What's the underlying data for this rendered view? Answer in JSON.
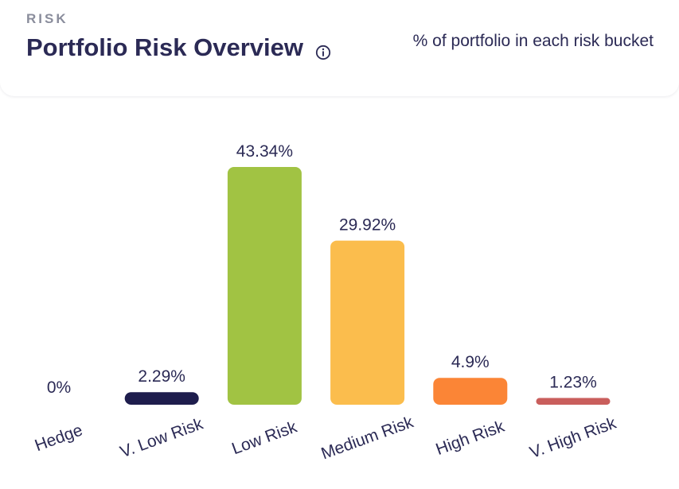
{
  "header": {
    "eyebrow": "RISK",
    "title": "Portfolio Risk Overview",
    "subtitle": "% of portfolio in each risk bucket",
    "info_icon": "info-circle-icon"
  },
  "chart_data": {
    "type": "bar",
    "title": "Portfolio Risk Overview",
    "subtitle": "% of portfolio in each risk bucket",
    "categories": [
      "Hedge",
      "V. Low Risk",
      "Low Risk",
      "Medium Risk",
      "High Risk",
      "V. High Risk"
    ],
    "values": [
      0,
      2.29,
      43.34,
      29.92,
      4.9,
      1.23
    ],
    "data_labels": [
      "0%",
      "2.29%",
      "43.34%",
      "29.92%",
      "4.9%",
      "1.23%"
    ],
    "colors": [
      "#1e1d4d",
      "#1e1d4d",
      "#a1c343",
      "#fbbd4d",
      "#fb8536",
      "#c95e5c"
    ],
    "ylim": [
      0,
      43.34
    ],
    "grid": false,
    "legend": "none",
    "xlabel": "",
    "ylabel": ""
  }
}
